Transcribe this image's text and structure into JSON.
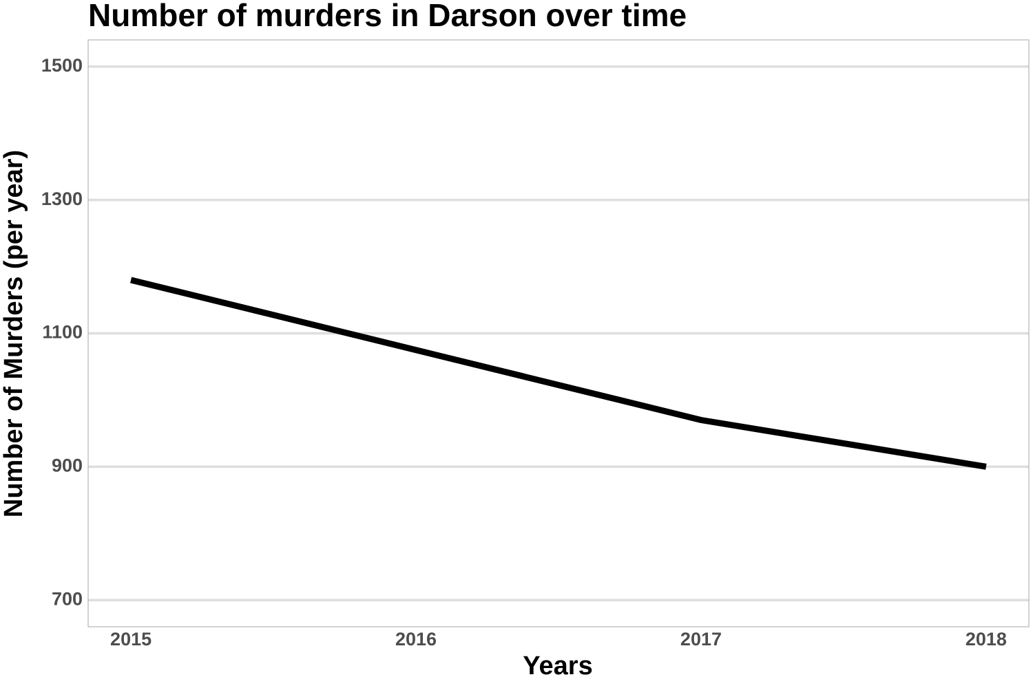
{
  "chart_data": {
    "type": "line",
    "title": "Number of murders in Darson over time",
    "x_label": "Years",
    "y_label": "Number of Murders (per year)",
    "x": [
      2015,
      2016,
      2017,
      2018
    ],
    "series": [
      {
        "color": "#000000",
        "values": [
          1180,
          1075,
          970,
          900
        ]
      }
    ],
    "xlim": [
      2014.85,
      2018.15
    ],
    "ylim": [
      660,
      1540
    ],
    "xticks": [
      2015,
      2016,
      2017,
      2018
    ],
    "yticks": [
      700,
      900,
      1100,
      1300,
      1500
    ],
    "grid": true
  }
}
